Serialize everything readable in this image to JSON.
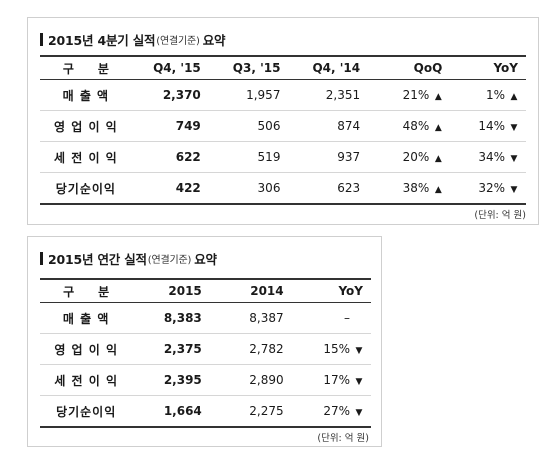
{
  "quarterly": {
    "title": "2015년 4분기 실적",
    "title_note": "(연결기준)",
    "title_suffix": "요약",
    "headers": [
      "구　　분",
      "Q4, '15",
      "Q3, '15",
      "Q4, '14",
      "QoQ",
      "YoY"
    ],
    "rows": [
      {
        "label": "매 출 액",
        "q4_15": "2,370",
        "q3_15": "1,957",
        "q4_14": "2,351",
        "qoq": "21%",
        "qoq_dir": "▲",
        "yoy": "1%",
        "yoy_dir": "▲"
      },
      {
        "label": "영 업 이 익",
        "q4_15": "749",
        "q3_15": "506",
        "q4_14": "874",
        "qoq": "48%",
        "qoq_dir": "▲",
        "yoy": "14%",
        "yoy_dir": "▼"
      },
      {
        "label": "세 전 이 익",
        "q4_15": "622",
        "q3_15": "519",
        "q4_14": "937",
        "qoq": "20%",
        "qoq_dir": "▲",
        "yoy": "34%",
        "yoy_dir": "▼"
      },
      {
        "label": "당기순이익",
        "q4_15": "422",
        "q3_15": "306",
        "q4_14": "623",
        "qoq": "38%",
        "qoq_dir": "▲",
        "yoy": "32%",
        "yoy_dir": "▼"
      }
    ],
    "unit": "(단위: 억 원)"
  },
  "annual": {
    "title": "2015년 연간 실적",
    "title_note": "(연결기준)",
    "title_suffix": "요약",
    "headers": [
      "구　　분",
      "2015",
      "2014",
      "YoY"
    ],
    "rows": [
      {
        "label": "매 출 액",
        "y2015": "8,383",
        "y2014": "8,387",
        "yoy": "–",
        "yoy_dir": ""
      },
      {
        "label": "영 업 이 익",
        "y2015": "2,375",
        "y2014": "2,782",
        "yoy": "15%",
        "yoy_dir": "▼"
      },
      {
        "label": "세 전 이 익",
        "y2015": "2,395",
        "y2014": "2,890",
        "yoy": "17%",
        "yoy_dir": "▼"
      },
      {
        "label": "당기순이익",
        "y2015": "1,664",
        "y2014": "2,275",
        "yoy": "27%",
        "yoy_dir": "▼"
      }
    ],
    "unit": "(단위: 억 원)"
  }
}
